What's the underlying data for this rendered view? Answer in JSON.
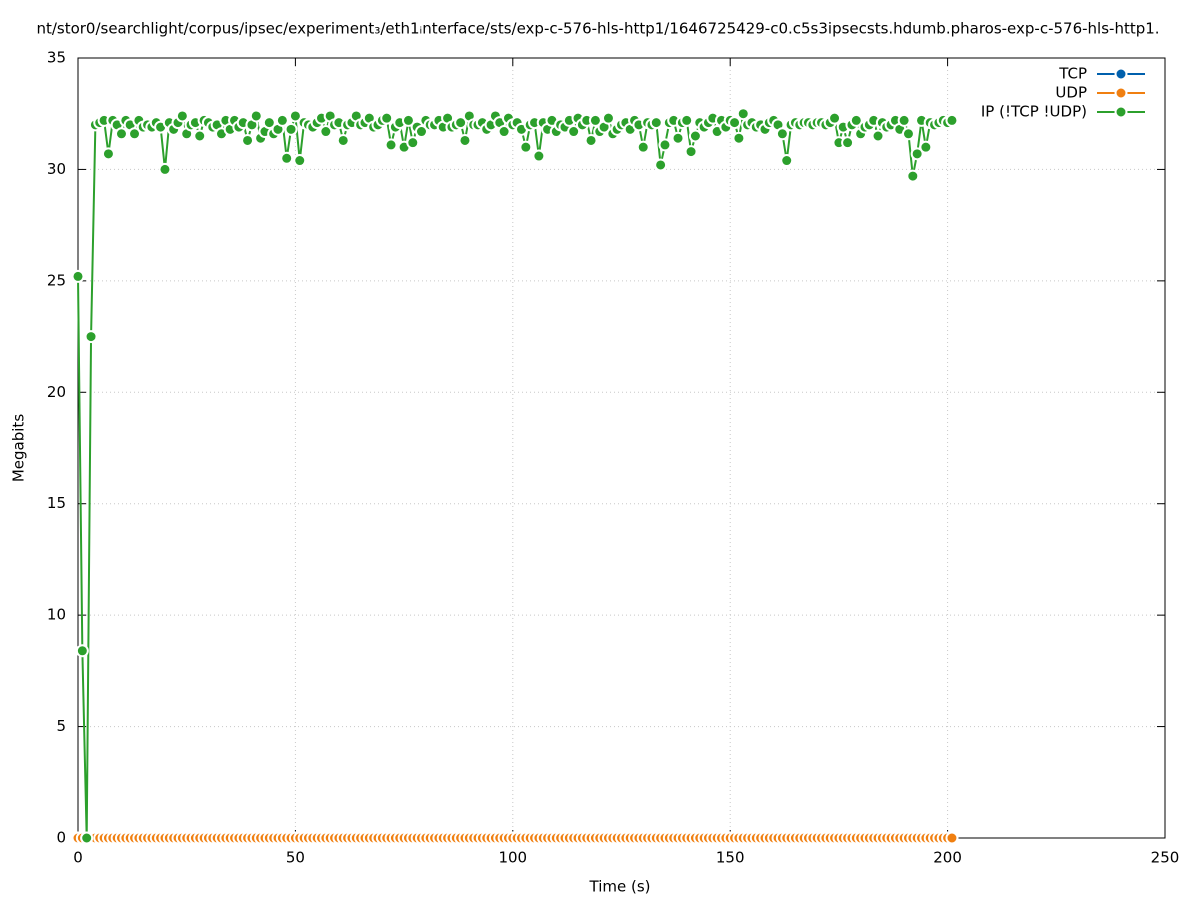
{
  "chart_data": {
    "type": "line",
    "title": "nt/stor0/searchlight/corpus/ipsec/experiment₃/eth1ᵢnterface/sts/exp-c-576-hls-http1/1646725429-c0.c5s3ipsecsts.hdumb.pharos-exp-c-576-hls-http1.",
    "x_label": "Time (s)",
    "y_label": "Megabits",
    "xlim": [
      0,
      250
    ],
    "xticks": [
      0,
      50,
      100,
      150,
      200,
      250
    ],
    "ylim": [
      0,
      35
    ],
    "yticks": [
      0,
      5,
      10,
      15,
      20,
      25,
      30,
      35
    ],
    "grid": true,
    "legend": "top-right",
    "x": [
      0,
      1,
      2,
      3,
      4,
      5,
      6,
      7,
      8,
      9,
      10,
      11,
      12,
      13,
      14,
      15,
      16,
      17,
      18,
      19,
      20,
      21,
      22,
      23,
      24,
      25,
      26,
      27,
      28,
      29,
      30,
      31,
      32,
      33,
      34,
      35,
      36,
      37,
      38,
      39,
      40,
      41,
      42,
      43,
      44,
      45,
      46,
      47,
      48,
      49,
      50,
      51,
      52,
      53,
      54,
      55,
      56,
      57,
      58,
      59,
      60,
      61,
      62,
      63,
      64,
      65,
      66,
      67,
      68,
      69,
      70,
      71,
      72,
      73,
      74,
      75,
      76,
      77,
      78,
      79,
      80,
      81,
      82,
      83,
      84,
      85,
      86,
      87,
      88,
      89,
      90,
      91,
      92,
      93,
      94,
      95,
      96,
      97,
      98,
      99,
      100,
      101,
      102,
      103,
      104,
      105,
      106,
      107,
      108,
      109,
      110,
      111,
      112,
      113,
      114,
      115,
      116,
      117,
      118,
      119,
      120,
      121,
      122,
      123,
      124,
      125,
      126,
      127,
      128,
      129,
      130,
      131,
      132,
      133,
      134,
      135,
      136,
      137,
      138,
      139,
      140,
      141,
      142,
      143,
      144,
      145,
      146,
      147,
      148,
      149,
      150,
      151,
      152,
      153,
      154,
      155,
      156,
      157,
      158,
      159,
      160,
      161,
      162,
      163,
      164,
      165,
      166,
      167,
      168,
      169,
      170,
      171,
      172,
      173,
      174,
      175,
      176,
      177,
      178,
      179,
      180,
      181,
      182,
      183,
      184,
      185,
      186,
      187,
      188,
      189,
      190,
      191,
      192,
      193,
      194,
      195,
      196,
      197,
      198,
      199,
      200,
      201
    ],
    "series": [
      {
        "name": "TCP",
        "color": "#0060ad",
        "values": [
          0,
          0,
          0,
          0,
          0,
          0,
          0,
          0,
          0,
          0,
          0,
          0,
          0,
          0,
          0,
          0,
          0,
          0,
          0,
          0,
          0,
          0,
          0,
          0,
          0,
          0,
          0,
          0,
          0,
          0,
          0,
          0,
          0,
          0,
          0,
          0,
          0,
          0,
          0,
          0,
          0,
          0,
          0,
          0,
          0,
          0,
          0,
          0,
          0,
          0,
          0,
          0,
          0,
          0,
          0,
          0,
          0,
          0,
          0,
          0,
          0,
          0,
          0,
          0,
          0,
          0,
          0,
          0,
          0,
          0,
          0,
          0,
          0,
          0,
          0,
          0,
          0,
          0,
          0,
          0,
          0,
          0,
          0,
          0,
          0,
          0,
          0,
          0,
          0,
          0,
          0,
          0,
          0,
          0,
          0,
          0,
          0,
          0,
          0,
          0,
          0,
          0,
          0,
          0,
          0,
          0,
          0,
          0,
          0,
          0,
          0,
          0,
          0,
          0,
          0,
          0,
          0,
          0,
          0,
          0,
          0,
          0,
          0,
          0,
          0,
          0,
          0,
          0,
          0,
          0,
          0,
          0,
          0,
          0,
          0,
          0,
          0,
          0,
          0,
          0,
          0,
          0,
          0,
          0,
          0,
          0,
          0,
          0,
          0,
          0,
          0,
          0,
          0,
          0,
          0,
          0,
          0,
          0,
          0,
          0,
          0,
          0,
          0,
          0,
          0,
          0,
          0,
          0,
          0,
          0,
          0,
          0,
          0,
          0,
          0,
          0,
          0,
          0,
          0,
          0,
          0,
          0,
          0,
          0,
          0,
          0,
          0,
          0,
          0,
          0,
          0,
          0,
          0,
          0,
          0,
          0,
          0,
          0,
          0,
          0,
          0,
          0
        ]
      },
      {
        "name": "UDP",
        "color": "#f07f10",
        "values": [
          0,
          0,
          0,
          0,
          0,
          0,
          0,
          0,
          0,
          0,
          0,
          0,
          0,
          0,
          0,
          0,
          0,
          0,
          0,
          0,
          0,
          0,
          0,
          0,
          0,
          0,
          0,
          0,
          0,
          0,
          0,
          0,
          0,
          0,
          0,
          0,
          0,
          0,
          0,
          0,
          0,
          0,
          0,
          0,
          0,
          0,
          0,
          0,
          0,
          0,
          0,
          0,
          0,
          0,
          0,
          0,
          0,
          0,
          0,
          0,
          0,
          0,
          0,
          0,
          0,
          0,
          0,
          0,
          0,
          0,
          0,
          0,
          0,
          0,
          0,
          0,
          0,
          0,
          0,
          0,
          0,
          0,
          0,
          0,
          0,
          0,
          0,
          0,
          0,
          0,
          0,
          0,
          0,
          0,
          0,
          0,
          0,
          0,
          0,
          0,
          0,
          0,
          0,
          0,
          0,
          0,
          0,
          0,
          0,
          0,
          0,
          0,
          0,
          0,
          0,
          0,
          0,
          0,
          0,
          0,
          0,
          0,
          0,
          0,
          0,
          0,
          0,
          0,
          0,
          0,
          0,
          0,
          0,
          0,
          0,
          0,
          0,
          0,
          0,
          0,
          0,
          0,
          0,
          0,
          0,
          0,
          0,
          0,
          0,
          0,
          0,
          0,
          0,
          0,
          0,
          0,
          0,
          0,
          0,
          0,
          0,
          0,
          0,
          0,
          0,
          0,
          0,
          0,
          0,
          0,
          0,
          0,
          0,
          0,
          0,
          0,
          0,
          0,
          0,
          0,
          0,
          0,
          0,
          0,
          0,
          0,
          0,
          0,
          0,
          0,
          0,
          0,
          0,
          0,
          0,
          0,
          0,
          0,
          0,
          0,
          0,
          0
        ]
      },
      {
        "name": "IP (!TCP  !UDP)",
        "color": "#2ca02c",
        "values": [
          25.2,
          8.4,
          0,
          22.5,
          32.0,
          32.1,
          32.2,
          30.7,
          32.2,
          32.0,
          31.6,
          32.2,
          32.0,
          31.6,
          32.2,
          31.9,
          32.0,
          31.9,
          32.1,
          31.9,
          30.0,
          32.1,
          31.8,
          32.1,
          32.4,
          31.6,
          32.0,
          32.1,
          31.5,
          32.2,
          32.1,
          31.9,
          32.0,
          31.6,
          32.2,
          31.8,
          32.2,
          31.9,
          32.1,
          31.3,
          32.0,
          32.4,
          31.4,
          31.7,
          32.1,
          31.6,
          31.8,
          32.2,
          30.5,
          31.8,
          32.4,
          30.4,
          32.1,
          32.0,
          31.9,
          32.1,
          32.3,
          31.7,
          32.4,
          32.0,
          32.1,
          31.3,
          32.0,
          32.1,
          32.4,
          32.0,
          32.1,
          32.3,
          31.9,
          32.0,
          32.2,
          32.3,
          31.1,
          31.9,
          32.1,
          31.0,
          32.2,
          31.2,
          31.9,
          31.7,
          32.2,
          32.0,
          32.0,
          32.2,
          31.9,
          32.3,
          31.9,
          32.0,
          32.1,
          31.3,
          32.4,
          32.0,
          32.0,
          32.1,
          31.8,
          32.0,
          32.4,
          32.1,
          31.7,
          32.3,
          32.0,
          32.1,
          31.8,
          31.0,
          32.0,
          32.1,
          30.6,
          32.1,
          31.8,
          32.2,
          31.7,
          32.0,
          31.9,
          32.2,
          31.7,
          32.3,
          32.0,
          32.2,
          31.3,
          32.2,
          31.7,
          31.9,
          32.3,
          31.6,
          31.8,
          32.0,
          32.1,
          31.8,
          32.2,
          32.0,
          31.0,
          32.1,
          32.0,
          32.1,
          30.2,
          31.1,
          32.1,
          32.2,
          31.4,
          32.1,
          32.2,
          30.8,
          31.5,
          32.1,
          31.9,
          32.1,
          32.3,
          31.7,
          32.2,
          31.9,
          32.2,
          32.1,
          31.4,
          32.5,
          32.0,
          32.1,
          31.9,
          32.0,
          31.8,
          32.1,
          32.2,
          32.0,
          31.6,
          30.4,
          32.0,
          32.1,
          32.0,
          32.1,
          32.1,
          32.0,
          32.1,
          32.1,
          32.0,
          32.1,
          32.3,
          31.2,
          31.9,
          31.2,
          32.0,
          32.2,
          31.6,
          31.9,
          32.0,
          32.2,
          31.5,
          32.1,
          31.9,
          32.0,
          32.2,
          31.8,
          32.2,
          31.6,
          29.7,
          30.7,
          32.2,
          31.0,
          32.1,
          32.0,
          32.1,
          32.2,
          32.1,
          32.2
        ]
      }
    ]
  }
}
